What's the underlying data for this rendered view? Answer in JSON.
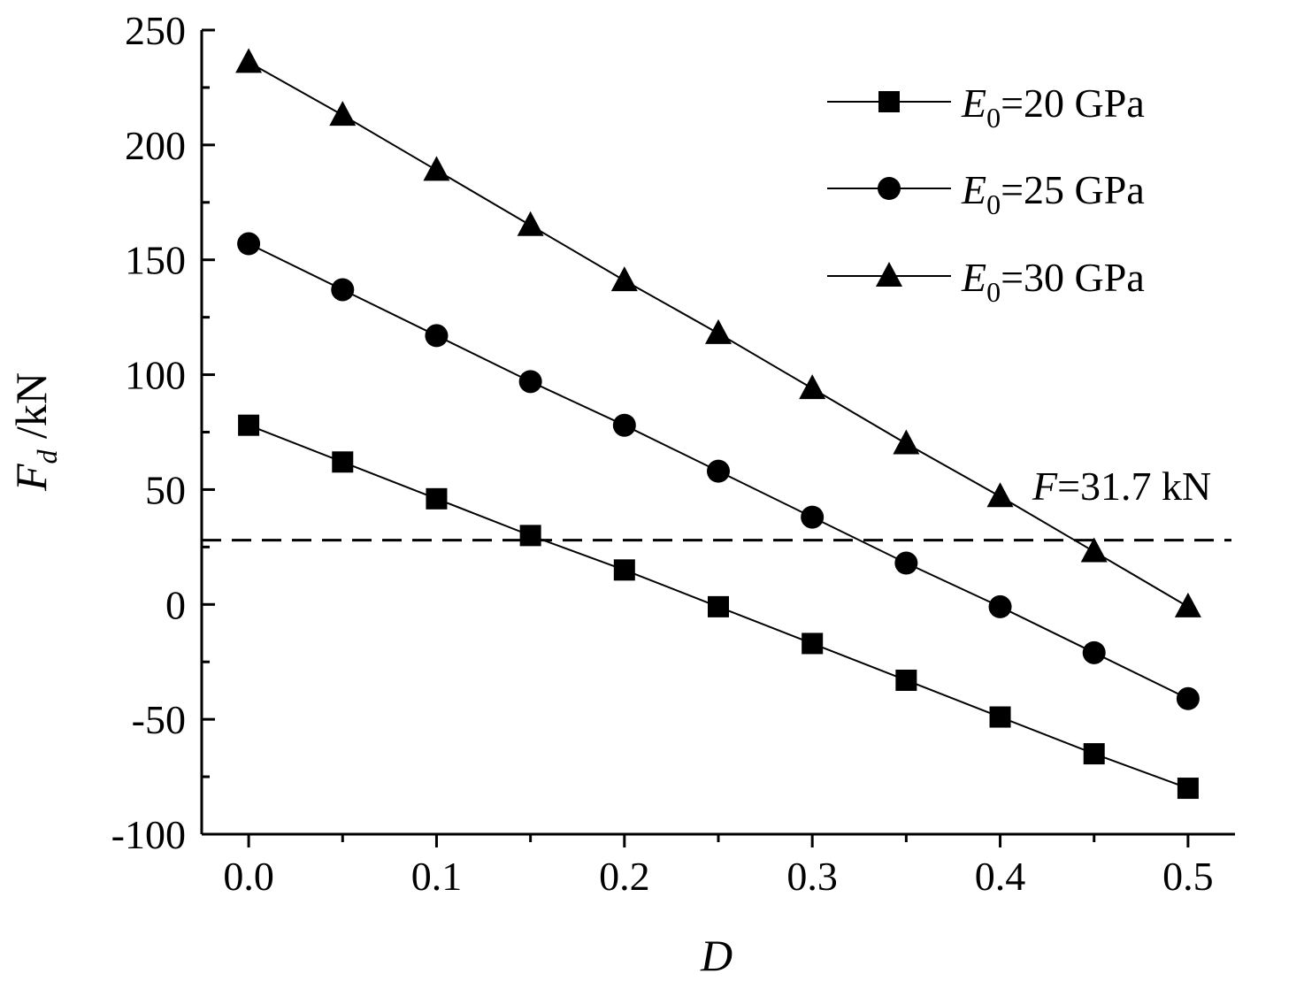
{
  "chart_data": {
    "type": "line",
    "xlabel": "D",
    "ylabel": {
      "main": "F",
      "sub": "d",
      "rest": " /kN"
    },
    "xlim": [
      -0.025,
      0.525
    ],
    "ylim": [
      -100,
      250
    ],
    "xticks": [
      0.0,
      0.1,
      0.2,
      0.3,
      0.4,
      0.5
    ],
    "xtick_labels": [
      "0.0",
      "0.1",
      "0.2",
      "0.3",
      "0.4",
      "0.5"
    ],
    "yticks": [
      -100,
      -50,
      0,
      50,
      100,
      150,
      200,
      250
    ],
    "ytick_labels": [
      "-100",
      "-50",
      "0",
      "50",
      "100",
      "150",
      "200",
      "250"
    ],
    "x": [
      0.0,
      0.05,
      0.1,
      0.15,
      0.2,
      0.25,
      0.3,
      0.35,
      0.4,
      0.45,
      0.5
    ],
    "series": [
      {
        "name_main": "E",
        "name_sub": "0",
        "name_rest": "=20 GPa",
        "marker": "square",
        "values": [
          78,
          62,
          46,
          30,
          15,
          -1,
          -17,
          -33,
          -49,
          -65,
          -80
        ]
      },
      {
        "name_main": "E",
        "name_sub": "0",
        "name_rest": "=25 GPa",
        "marker": "circle",
        "values": [
          157,
          137,
          117,
          97,
          78,
          58,
          38,
          18,
          -1,
          -21,
          -41
        ]
      },
      {
        "name_main": "E",
        "name_sub": "0",
        "name_rest": "=30 GPa",
        "marker": "triangle",
        "values": [
          236,
          213,
          189,
          165,
          141,
          118,
          94,
          70,
          47,
          23,
          -1
        ]
      }
    ],
    "reference_line": {
      "y": 28,
      "style": "dashed"
    },
    "annotation": {
      "main": "F",
      "rest": "=31.7 kN"
    },
    "legend_position": "top-right",
    "grid": false
  }
}
